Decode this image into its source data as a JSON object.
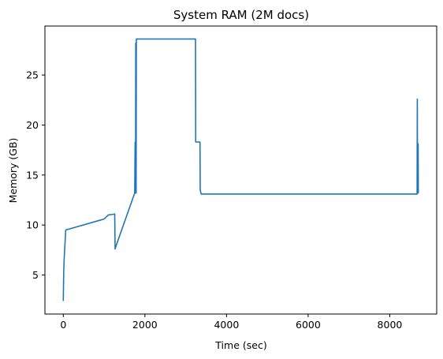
{
  "chart_data": {
    "type": "line",
    "title": "System RAM (2M docs)",
    "xlabel": "Time (sec)",
    "ylabel": "Memory (GB)",
    "xlim": [
      -450,
      9150
    ],
    "ylim": [
      1.1,
      29.9
    ],
    "xticks": [
      0,
      2000,
      4000,
      6000,
      8000
    ],
    "yticks": [
      5,
      10,
      15,
      20,
      25
    ],
    "grid": false,
    "legend": "none",
    "line_color": "#1f77b4",
    "series": [
      {
        "x": [
          0,
          10,
          20,
          60,
          1000,
          1050,
          1100,
          1260,
          1270,
          1300,
          1750,
          1760,
          1770,
          1775,
          1785,
          1790,
          1800,
          3240,
          3245,
          3350,
          3355,
          3380,
          4000,
          8670,
          8675,
          8680,
          8685,
          8690,
          8695,
          8700,
          8705
        ],
        "y": [
          2.4,
          5.2,
          6.5,
          9.5,
          10.6,
          10.8,
          11.0,
          11.1,
          7.6,
          8.0,
          13.2,
          18.3,
          13.2,
          28.2,
          13.2,
          28.6,
          28.6,
          28.6,
          18.3,
          18.3,
          13.5,
          13.1,
          13.1,
          13.1,
          22.6,
          13.2,
          18.2,
          13.3,
          18.1,
          13.2,
          13.2
        ]
      }
    ]
  }
}
